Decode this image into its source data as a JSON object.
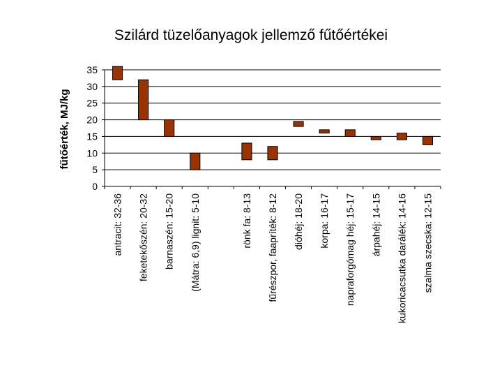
{
  "chart_data": {
    "type": "bar",
    "subtype": "floating-range",
    "title": "Szilárd tüzelőanyagok jellemző fűtőértékei",
    "ylabel": "fűtőérték, MJ/kg",
    "xlabel": "",
    "ylim": [
      0,
      35
    ],
    "yticks": [
      "0",
      "5",
      "10",
      "15",
      "20",
      "25",
      "30",
      "35"
    ],
    "grid": true,
    "bar_color": "#993300",
    "categories": [
      "antracit: 32-36",
      "feketekőszén: 20-32",
      "barnaszén: 15-20",
      "(Mátra: 6,9)  lignit:    5-10",
      "",
      "rönk fa: 8-13",
      "fűrészpor, faapríték: 8-12",
      "dióhéj: 18-20",
      "korpa: 16-17",
      "napraforgómag héj: 15-17",
      "árpahéj: 14-15",
      "kukoricacsutka darálék: 14-16",
      "szalma szecska: 12-15"
    ],
    "ranges": [
      [
        32,
        36
      ],
      [
        20,
        32
      ],
      [
        15,
        20
      ],
      [
        5,
        10
      ],
      null,
      [
        8,
        13
      ],
      [
        8,
        12
      ],
      [
        18,
        19.5
      ],
      [
        16,
        17
      ],
      [
        15,
        17
      ],
      [
        14,
        15
      ],
      [
        14,
        16
      ],
      [
        12.5,
        15
      ]
    ]
  }
}
